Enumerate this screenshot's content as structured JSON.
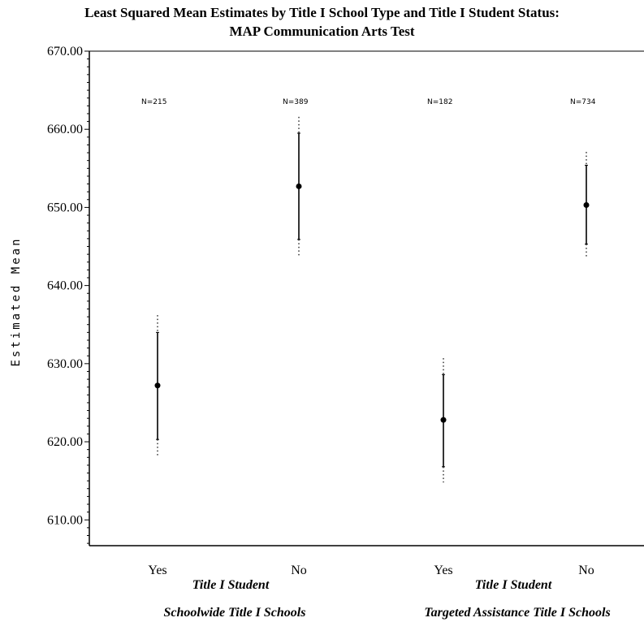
{
  "chart_data": {
    "type": "scatter",
    "title": "Least Squared Mean Estimates by Title I School Type and Title I Student Status:",
    "subtitle": "MAP Communication Arts Test",
    "ylabel": "Estimated Mean",
    "ylim": [
      606.7,
      670
    ],
    "yticks": [
      "610.00",
      "620.00",
      "630.00",
      "640.00",
      "650.00",
      "660.00",
      "670.00"
    ],
    "categories": [
      "Yes",
      "No",
      "Yes",
      "No"
    ],
    "groups": [
      {
        "label": "Title I Student",
        "school_type": "Schoolwide Title I Schools"
      },
      {
        "label": "Title I Student",
        "school_type": "Targeted Assistance Title I Schools"
      }
    ],
    "points": [
      {
        "category": "Yes",
        "group": "Schoolwide Title I Schools",
        "n_label": "N=215",
        "mean": 627.2,
        "ci_low": 620.3,
        "ci_high": 634.0,
        "outer_low": 618.0,
        "outer_high": 636.2
      },
      {
        "category": "No",
        "group": "Schoolwide Title I Schools",
        "n_label": "N=389",
        "mean": 652.7,
        "ci_low": 645.9,
        "ci_high": 659.5,
        "outer_low": 643.8,
        "outer_high": 661.6
      },
      {
        "category": "Yes",
        "group": "Targeted Assistance Title I Schools",
        "n_label": "N=182",
        "mean": 622.8,
        "ci_low": 616.8,
        "ci_high": 628.6,
        "outer_low": 614.8,
        "outer_high": 630.7
      },
      {
        "category": "No",
        "group": "Targeted Assistance Title I Schools",
        "n_label": "N=734",
        "mean": 650.3,
        "ci_low": 645.3,
        "ci_high": 655.4,
        "outer_low": 643.6,
        "outer_high": 657.1
      }
    ]
  }
}
